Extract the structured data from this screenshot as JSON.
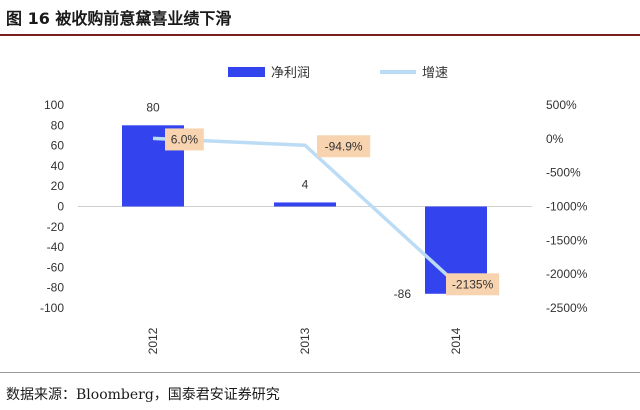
{
  "header": {
    "title": "图 16 被收购前意黛喜业绩下滑"
  },
  "footer": {
    "source": "数据来源：Bloomberg，国泰君安证券研究"
  },
  "colors": {
    "bar": "#3344ee",
    "line": "#bcdcf5",
    "label_bg": "#f8d3b0",
    "rule": "#7a1f1f"
  },
  "chart_data": {
    "type": "bar+line",
    "title": "图 16 被收购前意黛喜业绩下滑",
    "categories": [
      "2012",
      "2013",
      "2014"
    ],
    "series": [
      {
        "name": "净利润",
        "type": "bar",
        "axis": "left",
        "values": [
          80,
          4,
          -86
        ],
        "labels": [
          "80",
          "4",
          "-86"
        ]
      },
      {
        "name": "增速",
        "type": "line",
        "axis": "right",
        "values": [
          6.0,
          -94.9,
          -2135
        ],
        "labels": [
          "6.0%",
          "-94.9%",
          "-2135%"
        ]
      }
    ],
    "y_left": {
      "min": -100,
      "max": 100,
      "ticks": [
        "100",
        "80",
        "60",
        "40",
        "20",
        "0",
        "-20",
        "-40",
        "-60",
        "-80",
        "-100"
      ]
    },
    "y_right": {
      "min": -2500,
      "max": 500,
      "ticks": [
        "500%",
        "0%",
        "-500%",
        "-1000%",
        "-1500%",
        "-2000%",
        "-2500%"
      ]
    },
    "legend": {
      "position": "top"
    }
  }
}
